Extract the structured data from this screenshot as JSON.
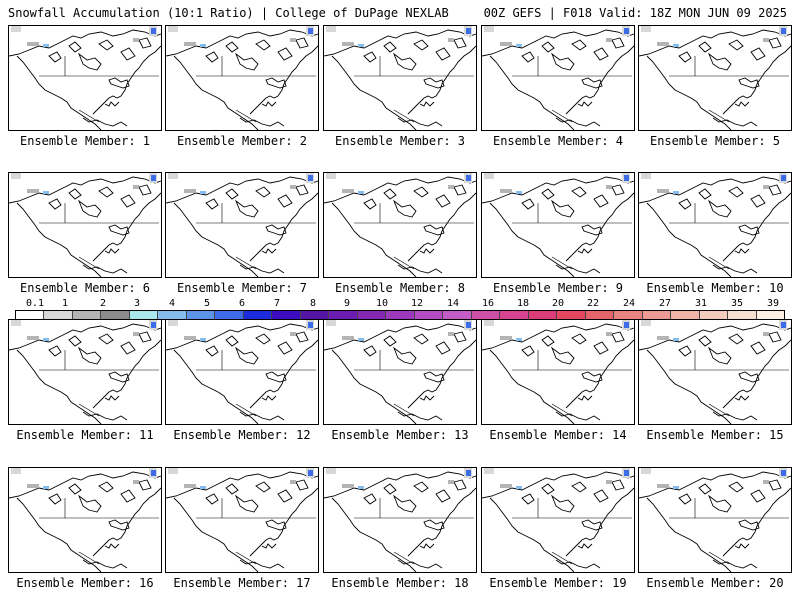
{
  "header": {
    "title_left": "Snowfall Accumulation (10:1 Ratio) | College of DuPage NEXLAB",
    "title_right": "00Z GEFS | F018 Valid: 18Z MON JUN 09 2025"
  },
  "members": [
    "Ensemble Member: 1",
    "Ensemble Member: 2",
    "Ensemble Member: 3",
    "Ensemble Member: 4",
    "Ensemble Member: 5",
    "Ensemble Member: 6",
    "Ensemble Member: 7",
    "Ensemble Member: 8",
    "Ensemble Member: 9",
    "Ensemble Member: 10",
    "Ensemble Member: 11",
    "Ensemble Member: 12",
    "Ensemble Member: 13",
    "Ensemble Member: 14",
    "Ensemble Member: 15",
    "Ensemble Member: 16",
    "Ensemble Member: 17",
    "Ensemble Member: 18",
    "Ensemble Member: 19",
    "Ensemble Member: 20"
  ],
  "colorbar": {
    "labels": [
      "0.1",
      "1",
      "2",
      "3",
      "4",
      "5",
      "6",
      "7",
      "8",
      "9",
      "10",
      "12",
      "14",
      "16",
      "18",
      "20",
      "22",
      "24",
      "27",
      "31",
      "35",
      "39"
    ],
    "colors": [
      "#ffffff",
      "#d8d8d8",
      "#b4b4b4",
      "#8c8c8c",
      "#a8e8ec",
      "#84bcec",
      "#5c94e8",
      "#3c6ce8",
      "#1c2cdc",
      "#3c0cc0",
      "#5414a4",
      "#6c1cb0",
      "#8428b4",
      "#9c38bc",
      "#b44cc4",
      "#c45cc8",
      "#cc50a8",
      "#d44490",
      "#dc3c78",
      "#e44860",
      "#e4646c",
      "#e88480",
      "#ec9c94",
      "#f0b4a8",
      "#f4ccbc",
      "#f8e0d0",
      "#fcf0e4"
    ]
  }
}
